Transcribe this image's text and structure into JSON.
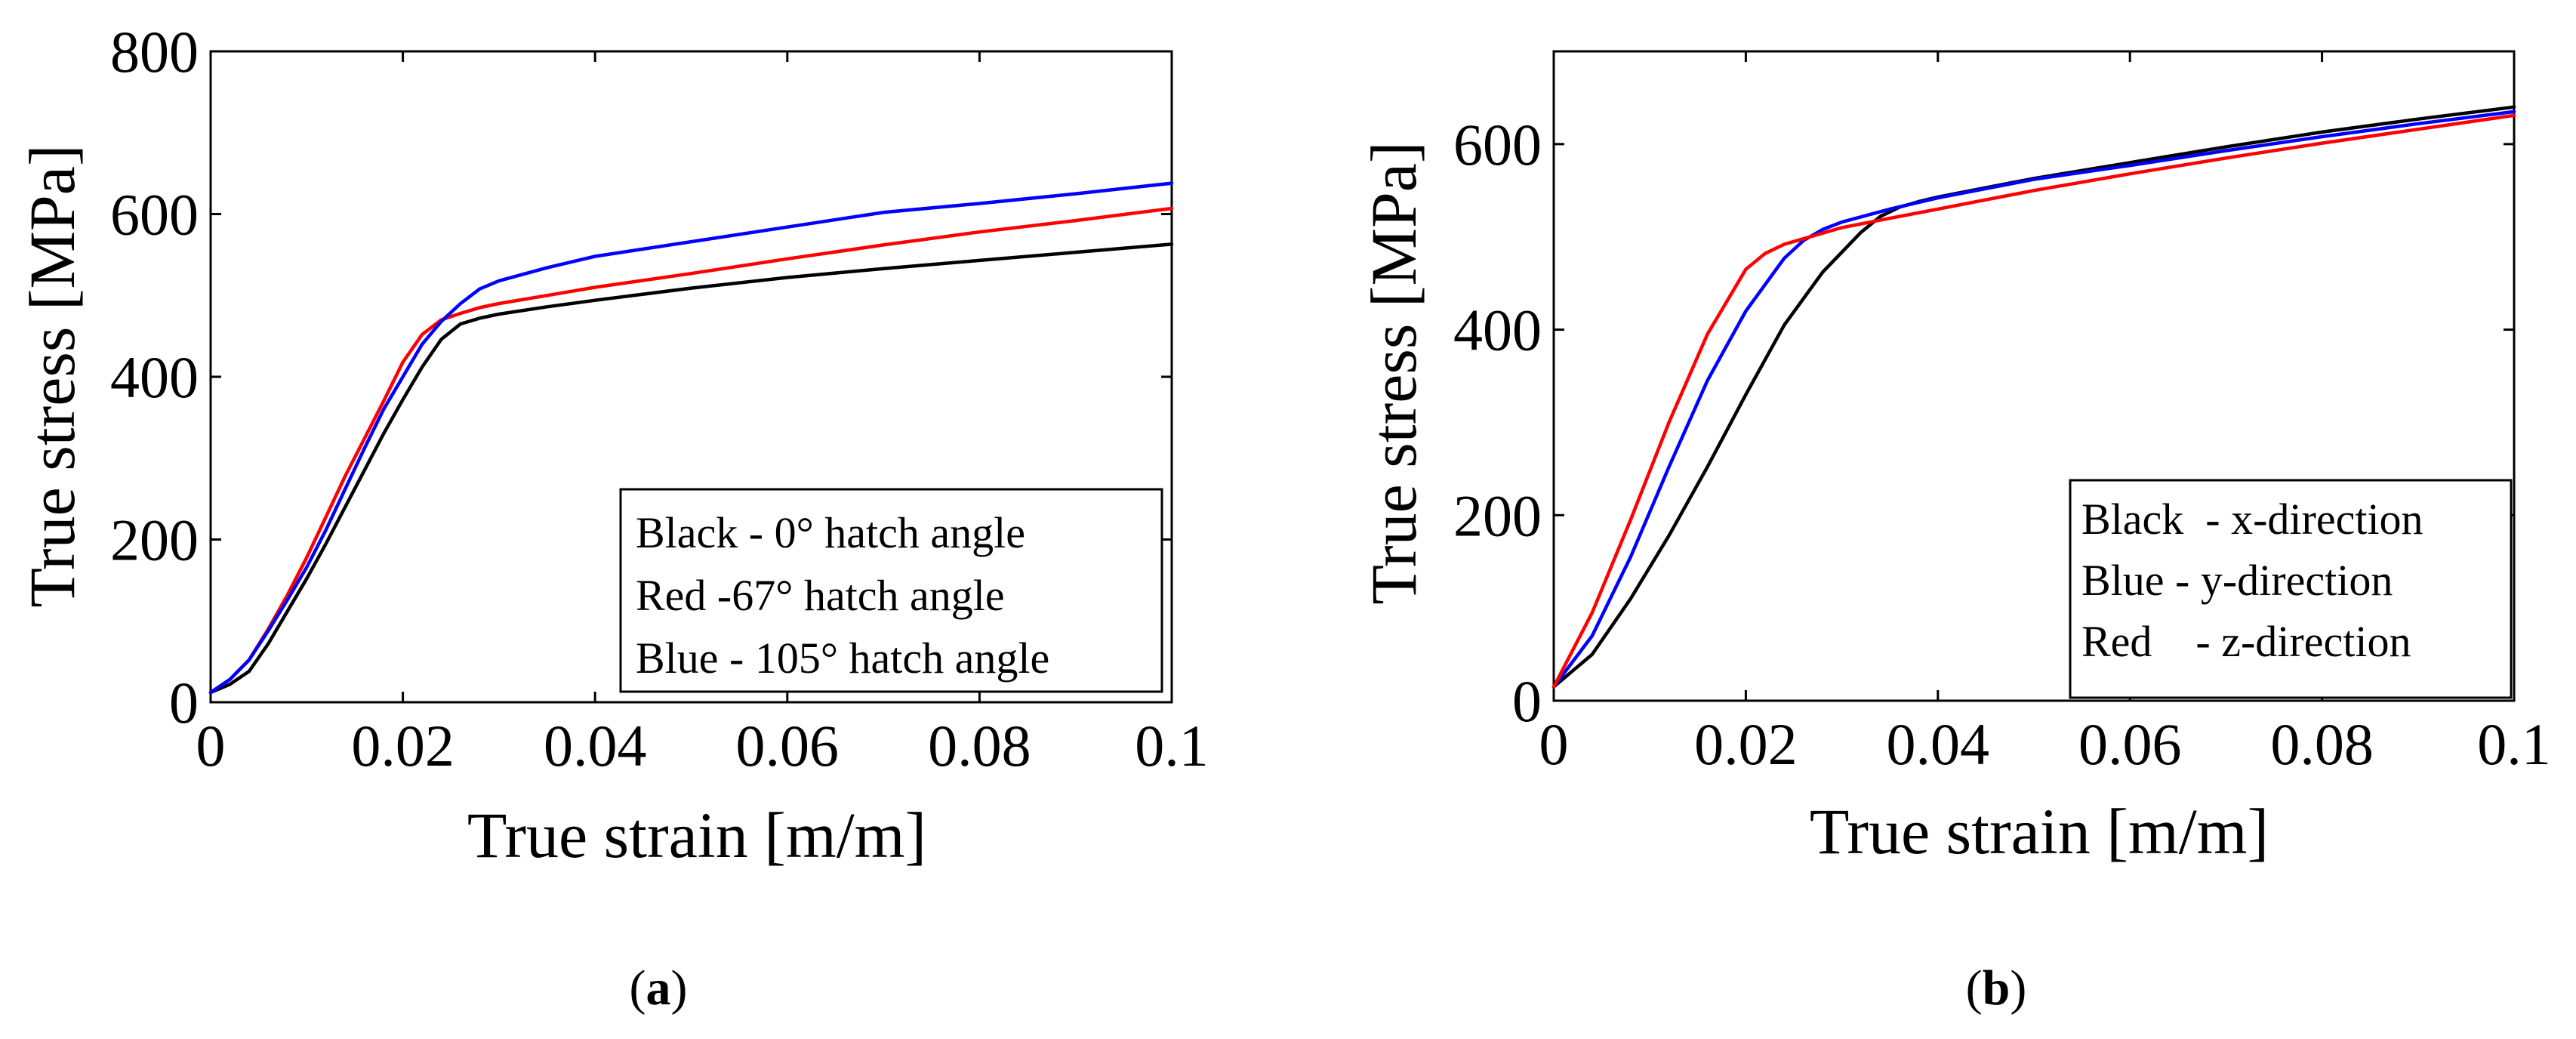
{
  "figure": {
    "captions": [
      {
        "open": "(",
        "letter": "a",
        "close": ")"
      },
      {
        "open": "(",
        "letter": "b",
        "close": ")"
      }
    ]
  },
  "chart_data": [
    {
      "type": "line",
      "title": "",
      "xlabel": "True strain [m/m]",
      "ylabel": "True stress [MPa]",
      "xlim": [
        0,
        0.1
      ],
      "ylim": [
        0,
        800
      ],
      "xticks": [
        0,
        0.02,
        0.04,
        0.06,
        0.08,
        0.1
      ],
      "xtick_labels": [
        "0",
        "0.02",
        "0.04",
        "0.06",
        "0.08",
        "0.1"
      ],
      "yticks": [
        0,
        200,
        400,
        600,
        800
      ],
      "ytick_labels": [
        "0",
        "200",
        "400",
        "600",
        "800"
      ],
      "legend": {
        "position": "bottom-right",
        "entries": [
          "Black - 0° hatch angle",
          "Red -67° hatch angle",
          "Blue - 105° hatch angle"
        ]
      },
      "series": [
        {
          "name": "Black - 0° hatch angle",
          "color": "#000000",
          "x": [
            0,
            0.002,
            0.004,
            0.006,
            0.008,
            0.01,
            0.012,
            0.014,
            0.016,
            0.018,
            0.02,
            0.022,
            0.024,
            0.026,
            0.028,
            0.03,
            0.035,
            0.04,
            0.05,
            0.06,
            0.07,
            0.08,
            0.09,
            0.1
          ],
          "y": [
            12,
            22,
            38,
            72,
            112,
            152,
            195,
            240,
            285,
            330,
            372,
            412,
            446,
            465,
            472,
            477,
            486,
            494,
            509,
            522,
            533,
            543,
            553,
            563
          ]
        },
        {
          "name": "Red -67° hatch angle",
          "color": "#ff0000",
          "x": [
            0,
            0.002,
            0.004,
            0.006,
            0.008,
            0.01,
            0.012,
            0.014,
            0.016,
            0.018,
            0.02,
            0.022,
            0.024,
            0.026,
            0.028,
            0.03,
            0.035,
            0.04,
            0.05,
            0.06,
            0.07,
            0.08,
            0.09,
            0.1
          ],
          "y": [
            12,
            28,
            52,
            90,
            132,
            178,
            228,
            278,
            324,
            370,
            418,
            452,
            470,
            478,
            485,
            490,
            500,
            510,
            527,
            545,
            562,
            578,
            592,
            607
          ]
        },
        {
          "name": "Blue - 105° hatch angle",
          "color": "#0000ff",
          "x": [
            0,
            0.002,
            0.004,
            0.006,
            0.008,
            0.01,
            0.012,
            0.014,
            0.016,
            0.018,
            0.02,
            0.022,
            0.024,
            0.026,
            0.028,
            0.03,
            0.035,
            0.04,
            0.05,
            0.06,
            0.07,
            0.08,
            0.09,
            0.1
          ],
          "y": [
            12,
            28,
            52,
            88,
            126,
            166,
            212,
            262,
            312,
            360,
            400,
            440,
            468,
            490,
            508,
            518,
            534,
            548,
            566,
            584,
            602,
            613,
            625,
            638
          ]
        }
      ]
    },
    {
      "type": "line",
      "title": "",
      "xlabel": "True strain [m/m]",
      "ylabel": "True stress [MPa]",
      "xlim": [
        0,
        0.1
      ],
      "ylim": [
        0,
        700
      ],
      "xticks": [
        0,
        0.02,
        0.04,
        0.06,
        0.08,
        0.1
      ],
      "xtick_labels": [
        "0",
        "0.02",
        "0.04",
        "0.06",
        "0.08",
        "0.1"
      ],
      "yticks": [
        0,
        200,
        400,
        600
      ],
      "ytick_labels": [
        "0",
        "200",
        "400",
        "600"
      ],
      "legend": {
        "position": "bottom-right",
        "entries": [
          "Black  - x-direction",
          "Blue - y-direction",
          "Red    - z-direction"
        ]
      },
      "series": [
        {
          "name": "Black  - x-direction",
          "color": "#000000",
          "x": [
            0,
            0.004,
            0.008,
            0.012,
            0.016,
            0.02,
            0.024,
            0.028,
            0.032,
            0.034,
            0.036,
            0.038,
            0.04,
            0.045,
            0.05,
            0.06,
            0.07,
            0.08,
            0.09,
            0.1
          ],
          "y": [
            15,
            50,
            110,
            178,
            252,
            330,
            405,
            462,
            505,
            522,
            532,
            538,
            543,
            553,
            563,
            580,
            597,
            613,
            627,
            640
          ]
        },
        {
          "name": "Blue - y-direction",
          "color": "#0000ff",
          "x": [
            0,
            0.004,
            0.008,
            0.012,
            0.016,
            0.02,
            0.024,
            0.026,
            0.028,
            0.03,
            0.035,
            0.04,
            0.045,
            0.05,
            0.06,
            0.07,
            0.08,
            0.09,
            0.1
          ],
          "y": [
            15,
            70,
            155,
            252,
            345,
            420,
            477,
            496,
            508,
            516,
            530,
            542,
            552,
            562,
            577,
            593,
            608,
            622,
            635
          ]
        },
        {
          "name": "Red    - z-direction",
          "color": "#ff0000",
          "x": [
            0,
            0.004,
            0.008,
            0.012,
            0.016,
            0.02,
            0.022,
            0.024,
            0.026,
            0.03,
            0.035,
            0.04,
            0.045,
            0.05,
            0.06,
            0.07,
            0.08,
            0.09,
            0.1
          ],
          "y": [
            15,
            95,
            195,
            300,
            395,
            465,
            482,
            492,
            498,
            510,
            520,
            530,
            540,
            550,
            568,
            585,
            601,
            616,
            631
          ]
        }
      ]
    }
  ]
}
